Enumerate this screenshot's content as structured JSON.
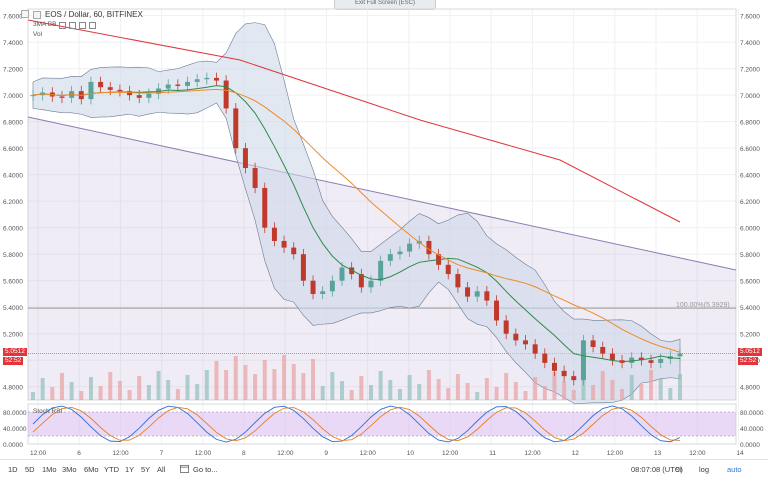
{
  "top": {
    "exit_fullscreen": "Exit Full Screen (ESC)"
  },
  "legend": {
    "title": "EOS / Dollar, 60, BITFINEX",
    "indicator1": "3MA BB",
    "indicator2": "Vol"
  },
  "rsi": {
    "label": "Stoch RSI"
  },
  "price_axis": {
    "ticks": [
      "7.6000",
      "7.4000",
      "7.2000",
      "7.0000",
      "6.8000",
      "6.6000",
      "6.4000",
      "6.2000",
      "6.0000",
      "5.8000",
      "5.6000",
      "5.4000",
      "5.2000",
      "5.0000",
      "4.8000"
    ],
    "current": "5.0512",
    "countdown": "52:52"
  },
  "rsi_axis": {
    "ticks": [
      "80.0000",
      "40.0000",
      "0.0000"
    ]
  },
  "time_axis": {
    "ticks": [
      "12:00",
      "6",
      "12:00",
      "7",
      "12:00",
      "8",
      "12:00",
      "9",
      "12:00",
      "10",
      "12:00",
      "11",
      "12:00",
      "12",
      "12:00",
      "13",
      "12:00",
      "14"
    ]
  },
  "fib_label": "100.00%(5.3929)",
  "bottom": {
    "ranges": [
      "1D",
      "5D",
      "1Mo",
      "3Mo",
      "6Mo",
      "YTD",
      "1Y",
      "5Y",
      "All"
    ],
    "goto": "Go to...",
    "time": "08:07:08 (UTC)",
    "percent": "%",
    "log": "log",
    "auto": "auto"
  },
  "colors": {
    "up": "#5aa39a",
    "down": "#c0392b",
    "band": "#cfd9ea",
    "sma_green": "#2e8b47",
    "sma_orange": "#f08a24",
    "sma_red": "#e0363b",
    "trend": "#8e7bb4"
  },
  "chart_data": {
    "type": "candlestick",
    "title": "EOS / Dollar, 60, BITFINEX",
    "ylim": [
      4.7,
      7.65
    ],
    "last_price": 5.0512,
    "fib_level": 5.3929,
    "close_series": [
      7.0,
      7.02,
      6.99,
      6.98,
      7.03,
      6.97,
      7.1,
      7.06,
      7.04,
      7.03,
      7.0,
      6.98,
      7.01,
      7.05,
      7.08,
      7.07,
      7.1,
      7.12,
      7.13,
      7.11,
      6.9,
      6.6,
      6.45,
      6.3,
      6.0,
      5.9,
      5.85,
      5.8,
      5.6,
      5.5,
      5.52,
      5.6,
      5.7,
      5.65,
      5.55,
      5.6,
      5.75,
      5.8,
      5.82,
      5.88,
      5.9,
      5.8,
      5.72,
      5.65,
      5.55,
      5.48,
      5.52,
      5.45,
      5.3,
      5.2,
      5.15,
      5.12,
      5.05,
      4.98,
      4.92,
      4.88,
      4.85,
      5.15,
      5.1,
      5.05,
      5.0,
      4.98,
      5.02,
      5.0,
      4.98,
      5.01,
      5.03,
      5.05
    ]
  }
}
